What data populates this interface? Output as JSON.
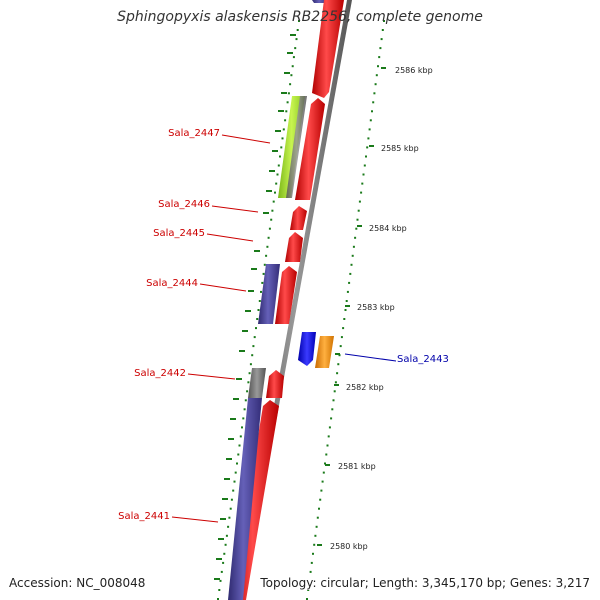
{
  "title": "Sphingopyxis alaskensis RB2256, complete genome",
  "footer": {
    "accession": "Accession: NC_008048",
    "topology": "Topology: circular; Length: 3,345,170 bp; Genes: 3,217"
  },
  "colors": {
    "cds": "#ee0000",
    "gene_left": "#4a4598",
    "gene_green": "#a6e32c",
    "gene_blue": "#0000ee",
    "gene_orange": "#f3920c",
    "gray": "#777777",
    "ticks": "#1a7a1a",
    "label_red": "#cc0000",
    "label_blue": "#0000aa"
  },
  "scale_labels": [
    "2586 kbp",
    "2585 kbp",
    "2584 kbp",
    "2583 kbp",
    "2582 kbp",
    "2581 kbp",
    "2580 kbp"
  ],
  "gene_labels": [
    {
      "name": "Sala_2447",
      "strand": "left"
    },
    {
      "name": "Sala_2446",
      "strand": "left"
    },
    {
      "name": "Sala_2445",
      "strand": "left"
    },
    {
      "name": "Sala_2444",
      "strand": "left"
    },
    {
      "name": "Sala_2443",
      "strand": "right"
    },
    {
      "name": "Sala_2442",
      "strand": "left"
    },
    {
      "name": "Sala_2441",
      "strand": "left"
    }
  ]
}
